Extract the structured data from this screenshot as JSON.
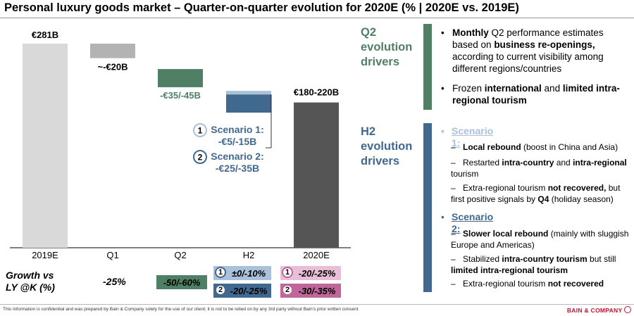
{
  "title": "Personal luxury goods market – Quarter-on-quarter evolution for 2020E (% | 2020E vs. 2019E)",
  "chart_data": {
    "type": "bar",
    "subtype": "waterfall",
    "categories": [
      "2019E",
      "Q1",
      "Q2",
      "H2",
      "2020E"
    ],
    "bars": [
      {
        "category": "2019E",
        "kind": "total",
        "from": 0,
        "to": 281,
        "label": "€281B",
        "color": "#d9d9d9"
      },
      {
        "category": "Q1",
        "kind": "delta",
        "from": 261,
        "to": 281,
        "label": "~-€20B",
        "color": "#b3b3b3"
      },
      {
        "category": "Q2",
        "kind": "delta",
        "from": 221,
        "to": 246,
        "label": "-€35/-45B",
        "color": "#4f7f64"
      },
      {
        "category": "H2",
        "kind": "delta",
        "from": 211,
        "to": 216,
        "scenario": "1",
        "color": "#a9c1db"
      },
      {
        "category": "H2",
        "kind": "delta",
        "from": 186,
        "to": 211,
        "scenario": "2",
        "color": "#41688f"
      },
      {
        "category": "2020E",
        "kind": "total",
        "from": 0,
        "to": 200,
        "label": "€180-220B",
        "color": "#555555"
      }
    ],
    "h2_labels": [
      {
        "num": "1",
        "title": "Scenario 1:",
        "value": "-€5/-15B"
      },
      {
        "num": "2",
        "title": "Scenario 2:",
        "value": "-€25/-35B"
      }
    ],
    "ylim": [
      0,
      290
    ],
    "grid": false,
    "legend": "none"
  },
  "growth": {
    "label_line1": "Growth vs",
    "label_line2": "LY @K (%)",
    "q1": "-25%",
    "q2": "-50/-60%",
    "h2": [
      {
        "num": "1",
        "text": "±0/-10%"
      },
      {
        "num": "2",
        "text": "-20/-25%"
      }
    ],
    "fy": [
      {
        "num": "1",
        "text": "-20/-25%"
      },
      {
        "num": "2",
        "text": "-30/-35%"
      }
    ]
  },
  "side": {
    "q2_head": [
      "Q2",
      "evolution",
      "drivers"
    ],
    "q2_bullets": [
      [
        {
          "t": "Monthly",
          "b": true
        },
        {
          "t": " Q2 performance estimates based on ",
          "b": false
        },
        {
          "t": "business re-openings,",
          "b": true
        },
        {
          "t": " according to current visibility among different regions/countries",
          "b": false
        }
      ],
      [
        {
          "t": "Frozen ",
          "b": false
        },
        {
          "t": "international",
          "b": true
        },
        {
          "t": " and ",
          "b": false
        },
        {
          "t": "limited intra-regional tourism",
          "b": true
        }
      ]
    ],
    "h2_head": [
      "H2",
      "evolution",
      "drivers"
    ],
    "scenario1_title": "Scenario 1:",
    "scenario1_items": [
      [
        {
          "t": "Local rebound",
          "b": true
        },
        {
          "t": " (boost in China and Asia)",
          "b": false
        }
      ],
      [
        {
          "t": "Restarted ",
          "b": false
        },
        {
          "t": "intra-country",
          "b": true
        },
        {
          "t": " and ",
          "b": false
        },
        {
          "t": "intra-regional",
          "b": true
        },
        {
          "t": " tourism",
          "b": false
        }
      ],
      [
        {
          "t": "Extra-regional tourism ",
          "b": false
        },
        {
          "t": "not recovered,",
          "b": true
        },
        {
          "t": " but first positive signals by ",
          "b": false
        },
        {
          "t": "Q4",
          "b": true
        },
        {
          "t": " (holiday season)",
          "b": false
        }
      ]
    ],
    "scenario2_title": "Scenario 2:",
    "scenario2_items": [
      [
        {
          "t": "Slower local rebound",
          "b": true
        },
        {
          "t": " (mainly with sluggish Europe and Americas)",
          "b": false
        }
      ],
      [
        {
          "t": "Stabilized ",
          "b": false
        },
        {
          "t": "intra-country tourism",
          "b": true
        },
        {
          "t": " but still ",
          "b": false
        },
        {
          "t": "limited intra-regional tourism",
          "b": true
        }
      ],
      [
        {
          "t": "Extra-regional tourism ",
          "b": false
        },
        {
          "t": "not recovered",
          "b": true
        }
      ]
    ]
  },
  "footer": "This information is confidential and was prepared by Bain & Company solely for the use of our client; it is not to be relied on by any 3rd party without Bain's prior written consent",
  "logo": "BAIN & COMPANY",
  "colors": {
    "q2_green": "#4f7f64",
    "h2_blue": "#41688f",
    "scenario1_light_blue": "#a9c1db",
    "fy_pink": "#c0669a",
    "growth_green": "#4f7f64"
  }
}
